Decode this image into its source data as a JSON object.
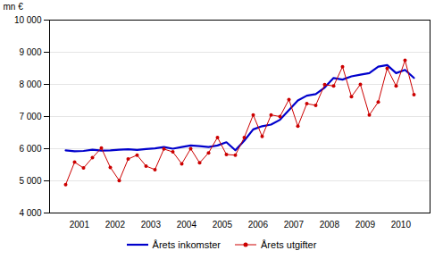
{
  "chart_data": {
    "type": "line",
    "categories": [
      null,
      "2001",
      null,
      null,
      null,
      "2002",
      null,
      null,
      null,
      "2003",
      null,
      null,
      null,
      "2004",
      null,
      null,
      null,
      "2005",
      null,
      null,
      null,
      "2006",
      null,
      null,
      null,
      "2007",
      null,
      null,
      null,
      "2008",
      null,
      null,
      null,
      "2009",
      null,
      null,
      null,
      "2010",
      null,
      null
    ],
    "series": [
      {
        "name": "Årets inkomster",
        "color": "#0000CC",
        "values": [
          5950,
          5920,
          5930,
          5970,
          5940,
          5950,
          5970,
          5980,
          5960,
          5990,
          6010,
          6050,
          6000,
          6050,
          6100,
          6080,
          6050,
          6100,
          6200,
          5950,
          6250,
          6600,
          6700,
          6750,
          6900,
          7200,
          7500,
          7650,
          7700,
          7900,
          8200,
          8150,
          8250,
          8300,
          8350,
          8550,
          8600,
          8350,
          8450,
          8200
        ]
      },
      {
        "name": "Årets utgifter",
        "color": "#CC0000",
        "marker": "circle",
        "values": [
          4880,
          5580,
          5400,
          5720,
          6020,
          5420,
          5010,
          5680,
          5800,
          5460,
          5350,
          5990,
          5900,
          5530,
          6000,
          5560,
          5870,
          6350,
          5820,
          5800,
          6350,
          7050,
          6380,
          7050,
          7000,
          7530,
          6700,
          7400,
          7350,
          7990,
          7950,
          8550,
          7620,
          8000,
          7050,
          7450,
          8500,
          7950,
          8750,
          7680
        ]
      }
    ],
    "ylabel": "mn €",
    "ylim": [
      4000,
      10000
    ],
    "yticks": [
      {
        "value": 4000,
        "label": "4 000"
      },
      {
        "value": 5000,
        "label": "5 000"
      },
      {
        "value": 6000,
        "label": "6 000"
      },
      {
        "value": 7000,
        "label": "7 000"
      },
      {
        "value": 8000,
        "label": "8 000"
      },
      {
        "value": 9000,
        "label": "9 000"
      },
      {
        "value": 10000,
        "label": "10 000"
      }
    ],
    "grid": true,
    "legend": "bottom"
  }
}
